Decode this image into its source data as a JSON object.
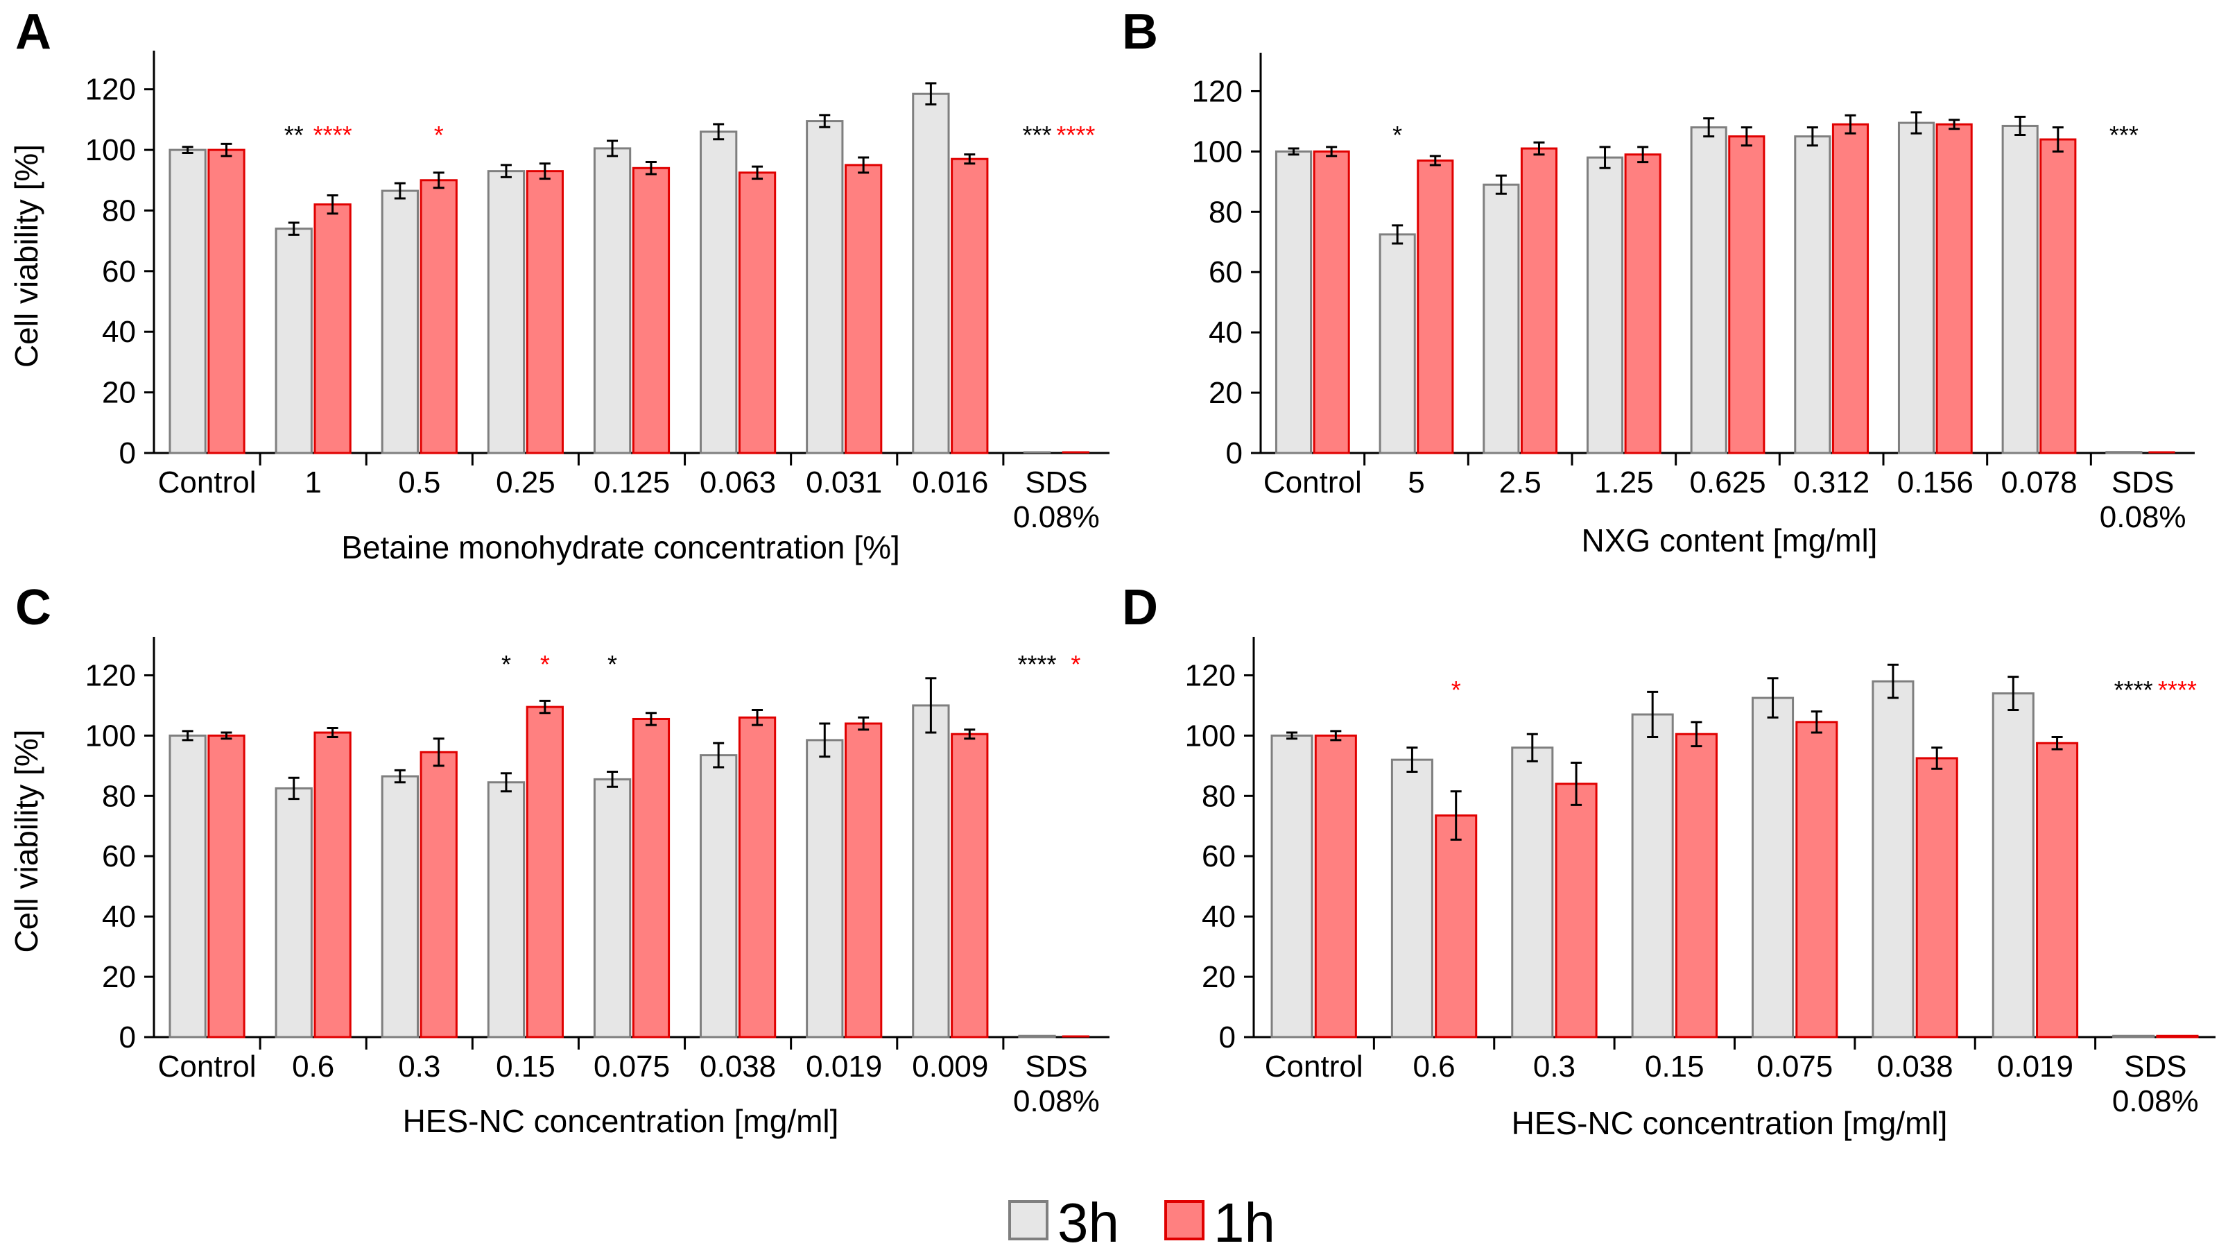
{
  "colors": {
    "h3": "#e6e6e6",
    "h3_stroke": "#7f7f7f",
    "h1": "#ff8080",
    "h1_stroke": "#e00000",
    "sig_black": "#000000",
    "sig_red": "#ff0000"
  },
  "legend": {
    "items": [
      {
        "key": "h3",
        "label": "3h"
      },
      {
        "key": "h1",
        "label": "1h"
      }
    ]
  },
  "chart_data": [
    {
      "panel": "A",
      "type": "bar",
      "xlabel": "Betaine monohydrate concentration [%]",
      "ylabel": "Cell viability [%]",
      "ylim": [
        0,
        130
      ],
      "yticks": [
        0,
        20,
        40,
        60,
        80,
        100,
        120
      ],
      "categories": [
        "Control",
        "1",
        "0.5",
        "0.25",
        "0.125",
        "0.063",
        "0.031",
        "0.016",
        "SDS\n0.08%"
      ],
      "series": [
        {
          "name": "3h",
          "values": [
            100,
            74,
            86.5,
            93,
            100.5,
            106,
            109.5,
            118.5,
            0
          ],
          "errors": [
            1,
            2,
            2.5,
            2,
            2.5,
            2.5,
            2,
            3.5,
            0
          ]
        },
        {
          "name": "1h",
          "values": [
            100,
            82,
            90,
            93,
            94,
            92.5,
            95,
            97,
            0
          ],
          "errors": [
            2,
            3,
            2.5,
            2.5,
            2,
            2,
            2.5,
            1.5,
            0
          ]
        }
      ],
      "significance": [
        {
          "category": 1,
          "series": "3h",
          "text": "**"
        },
        {
          "category": 1,
          "series": "1h",
          "text": "****"
        },
        {
          "category": 2,
          "series": "1h",
          "text": "*"
        },
        {
          "category": 8,
          "series": "3h",
          "text": "***"
        },
        {
          "category": 8,
          "series": "1h",
          "text": "****"
        }
      ]
    },
    {
      "panel": "B",
      "type": "bar",
      "xlabel": "NXG content [mg/ml]",
      "ylabel": "",
      "ylim": [
        0,
        130
      ],
      "yticks": [
        0,
        20,
        40,
        60,
        80,
        100,
        120
      ],
      "categories": [
        "Control",
        "5",
        "2.5",
        "1.25",
        "0.625",
        "0.312",
        "0.156",
        "0.078",
        "SDS\n0.08%"
      ],
      "series": [
        {
          "name": "3h",
          "values": [
            100,
            72.5,
            89,
            98,
            108,
            105,
            109.5,
            108.5,
            0.3
          ],
          "errors": [
            1,
            3,
            3,
            3.5,
            3,
            3,
            3.5,
            3,
            0
          ]
        },
        {
          "name": "1h",
          "values": [
            100,
            97,
            101,
            99,
            105,
            109,
            109,
            104,
            0
          ],
          "errors": [
            1.5,
            1.5,
            2,
            2.5,
            3,
            3,
            1.5,
            4,
            0
          ]
        }
      ],
      "significance": [
        {
          "category": 1,
          "series": "3h",
          "text": "*"
        },
        {
          "category": 8,
          "series": "3h",
          "text": "***"
        }
      ]
    },
    {
      "panel": "C",
      "type": "bar",
      "xlabel": "HES-NC concentration [mg/ml]",
      "ylabel": "Cell viability [%]",
      "ylim": [
        0,
        130
      ],
      "yticks": [
        0,
        20,
        40,
        60,
        80,
        100,
        120
      ],
      "categories": [
        "Control",
        "0.6",
        "0.3",
        "0.15",
        "0.075",
        "0.038",
        "0.019",
        "0.009",
        "SDS\n0.08%"
      ],
      "series": [
        {
          "name": "3h",
          "values": [
            100,
            82.5,
            86.5,
            84.5,
            85.5,
            93.5,
            98.5,
            110,
            0.4
          ],
          "errors": [
            1.5,
            3.5,
            2,
            3,
            2.5,
            4,
            5.5,
            9,
            0
          ]
        },
        {
          "name": "1h",
          "values": [
            100,
            101,
            94.5,
            109.5,
            105.5,
            106,
            104,
            100.5,
            0
          ],
          "errors": [
            1,
            1.5,
            4.5,
            2,
            2,
            2.5,
            2,
            1.5,
            0
          ]
        }
      ],
      "significance": [
        {
          "category": 3,
          "series": "3h",
          "text": "*"
        },
        {
          "category": 3,
          "series": "1h",
          "text": "*"
        },
        {
          "category": 4,
          "series": "3h",
          "text": "*"
        },
        {
          "category": 8,
          "series": "3h",
          "text": "****"
        },
        {
          "category": 8,
          "series": "1h",
          "text": "*"
        }
      ]
    },
    {
      "panel": "D",
      "type": "bar",
      "xlabel": "HES-NC concentration [mg/ml]",
      "ylabel": "",
      "ylim": [
        0,
        130
      ],
      "yticks": [
        0,
        20,
        40,
        60,
        80,
        100,
        120
      ],
      "categories": [
        "Control",
        "0.6",
        "0.3",
        "0.15",
        "0.075",
        "0.038",
        "0.019",
        "SDS\n0.08%"
      ],
      "series": [
        {
          "name": "3h",
          "values": [
            100,
            92,
            96,
            107,
            112.5,
            118,
            114,
            0.4
          ],
          "errors": [
            1,
            4,
            4.5,
            7.5,
            6.5,
            5.5,
            5.5,
            0
          ]
        },
        {
          "name": "1h",
          "values": [
            100,
            73.5,
            84,
            100.5,
            104.5,
            92.5,
            97.5,
            0.4
          ],
          "errors": [
            1.5,
            8,
            7,
            4,
            3.5,
            3.5,
            2,
            0
          ]
        }
      ],
      "significance": [
        {
          "category": 1,
          "series": "1h",
          "text": "*"
        },
        {
          "category": 7,
          "series": "3h",
          "text": "****"
        },
        {
          "category": 7,
          "series": "1h",
          "text": "****"
        }
      ]
    }
  ]
}
